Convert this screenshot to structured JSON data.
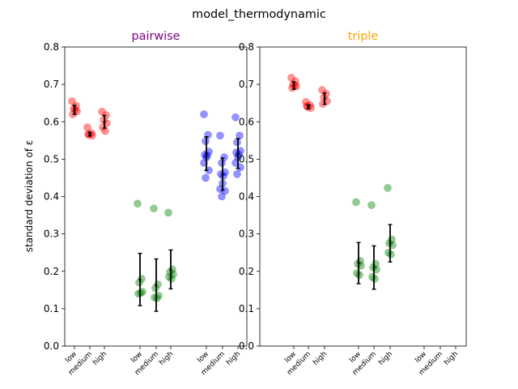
{
  "suptitle": "model_thermodynamic",
  "ylabel": "standard deviation of ε",
  "colors": {
    "red": "#ff0000",
    "green": "#008000",
    "blue": "#0000ff",
    "title_pairwise": "#800080",
    "title_triple": "#ffa500"
  },
  "chart_data": [
    {
      "type": "scatter",
      "title": "pairwise",
      "ylim": [
        0,
        0.8
      ],
      "yticks": [
        "0.0",
        "0.1",
        "0.2",
        "0.3",
        "0.4",
        "0.5",
        "0.6",
        "0.7",
        "0.8"
      ],
      "xtick_labels": [
        "low",
        "medium",
        "high",
        "low",
        "medium",
        "high",
        "low",
        "medium",
        "high"
      ],
      "groups": [
        {
          "color": "red",
          "label": "low",
          "points": [
            0.655,
            0.643,
            0.635,
            0.628,
            0.62,
            0.632
          ],
          "mean": 0.632,
          "err": 0.012
        },
        {
          "color": "red",
          "label": "medium",
          "points": [
            0.585,
            0.57,
            0.565,
            0.563,
            0.567
          ],
          "mean": 0.567,
          "err": 0.005
        },
        {
          "color": "red",
          "label": "high",
          "points": [
            0.627,
            0.618,
            0.605,
            0.596,
            0.585,
            0.575
          ],
          "mean": 0.6,
          "err": 0.017
        },
        {
          "color": "green",
          "label": "low",
          "points": [
            0.381,
            0.18,
            0.17,
            0.145,
            0.14,
            0.142
          ],
          "mean": 0.178,
          "err": 0.07
        },
        {
          "color": "green",
          "label": "medium",
          "points": [
            0.368,
            0.165,
            0.155,
            0.135,
            0.13,
            0.128
          ],
          "mean": 0.163,
          "err": 0.07
        },
        {
          "color": "green",
          "label": "high",
          "points": [
            0.357,
            0.205,
            0.198,
            0.192,
            0.185,
            0.18
          ],
          "mean": 0.205,
          "err": 0.052
        },
        {
          "color": "blue",
          "label": "low",
          "points": [
            0.62,
            0.565,
            0.548,
            0.52,
            0.512,
            0.51,
            0.505,
            0.49,
            0.47,
            0.45
          ],
          "mean": 0.515,
          "err": 0.045
        },
        {
          "color": "blue",
          "label": "medium",
          "points": [
            0.563,
            0.505,
            0.49,
            0.465,
            0.46,
            0.455,
            0.435,
            0.42,
            0.415,
            0.4
          ],
          "mean": 0.46,
          "err": 0.043
        },
        {
          "color": "blue",
          "label": "high",
          "points": [
            0.612,
            0.563,
            0.545,
            0.522,
            0.518,
            0.512,
            0.505,
            0.49,
            0.478,
            0.46
          ],
          "mean": 0.515,
          "err": 0.04
        }
      ]
    },
    {
      "type": "scatter",
      "title": "triple",
      "ylim": [
        0,
        0.8
      ],
      "yticks": [
        "0.0",
        "0.1",
        "0.2",
        "0.3",
        "0.4",
        "0.5",
        "0.6",
        "0.7",
        "0.8"
      ],
      "xtick_labels": [
        "low",
        "medium",
        "high",
        "low",
        "medium",
        "high",
        "low",
        "medium",
        "high"
      ],
      "groups": [
        {
          "color": "red",
          "label": "low",
          "points": [
            0.718,
            0.708,
            0.7,
            0.695,
            0.69,
            0.697
          ],
          "mean": 0.697,
          "err": 0.01
        },
        {
          "color": "red",
          "label": "medium",
          "points": [
            0.653,
            0.645,
            0.64,
            0.637,
            0.642
          ],
          "mean": 0.64,
          "err": 0.005
        },
        {
          "color": "red",
          "label": "high",
          "points": [
            0.685,
            0.675,
            0.665,
            0.655,
            0.648
          ],
          "mean": 0.662,
          "err": 0.015
        },
        {
          "color": "green",
          "label": "low",
          "points": [
            0.385,
            0.228,
            0.22,
            0.215,
            0.195,
            0.19
          ],
          "mean": 0.222,
          "err": 0.055
        },
        {
          "color": "green",
          "label": "medium",
          "points": [
            0.377,
            0.22,
            0.21,
            0.205,
            0.185,
            0.18
          ],
          "mean": 0.21,
          "err": 0.058
        },
        {
          "color": "green",
          "label": "high",
          "points": [
            0.423,
            0.285,
            0.275,
            0.27,
            0.25,
            0.245
          ],
          "mean": 0.275,
          "err": 0.05
        }
      ]
    }
  ]
}
